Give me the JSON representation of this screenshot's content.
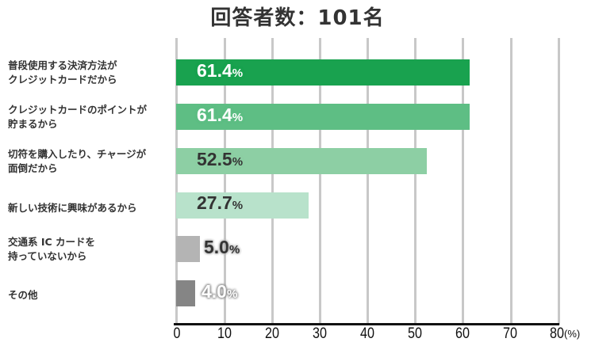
{
  "title": "回答者数：101名",
  "chart_data": {
    "type": "bar",
    "orientation": "horizontal",
    "title": "回答者数：101名",
    "categories": [
      "普段使用する決済方法がクレジットカードだから",
      "クレジットカードのポイントが貯まるから",
      "切符を購入したり、チャージが面倒だから",
      "新しい技術に興味があるから",
      "交通系 IC カードを持っていないから",
      "その他"
    ],
    "values": [
      61.4,
      61.4,
      52.5,
      27.7,
      5.0,
      4.0
    ],
    "colors": [
      "#19a24f",
      "#5ebe84",
      "#8dcfa4",
      "#b8e2cb",
      "#b4b4b4",
      "#858585"
    ],
    "xlabel": "(%)",
    "ylabel": "",
    "xlim": [
      0,
      80
    ],
    "xticks": [
      "0",
      "10",
      "20",
      "30",
      "40",
      "50",
      "60",
      "70",
      "80"
    ],
    "grid": true,
    "legend": "none"
  },
  "labels": [
    {
      "line1": "普段使用する決済方法が",
      "line2": "クレジットカードだから"
    },
    {
      "line1": "クレジットカードのポイントが",
      "line2": "貯まるから"
    },
    {
      "line1": "切符を購入したり、チャージが",
      "line2": "面倒だから"
    },
    {
      "line1": "新しい技術に興味があるから",
      "line2": ""
    },
    {
      "line1": "交通系 IC カードを",
      "line2": "持っていないから"
    },
    {
      "line1": "その他",
      "line2": ""
    }
  ],
  "value_labels": [
    {
      "num": "61.4",
      "pct": "%"
    },
    {
      "num": "61.4",
      "pct": "%"
    },
    {
      "num": "52.5",
      "pct": "%"
    },
    {
      "num": "27.7",
      "pct": "%"
    },
    {
      "num": "5.0",
      "pct": "%"
    },
    {
      "num": "4.0",
      "pct": "%"
    }
  ],
  "axis_unit": "(%)"
}
